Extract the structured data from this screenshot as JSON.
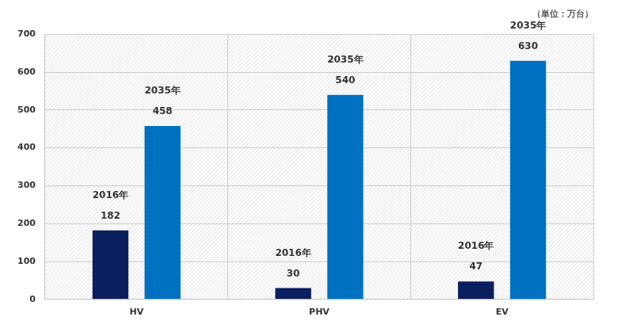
{
  "chart_data": {
    "type": "bar",
    "subtitle": "（単位：万台）",
    "categories": [
      "HV",
      "PHV",
      "EV"
    ],
    "series": [
      {
        "name": "2016年",
        "color": "#0b1f5e",
        "values": [
          182,
          30,
          47
        ]
      },
      {
        "name": "2035年",
        "color": "#0070c0",
        "values": [
          458,
          540,
          630
        ]
      }
    ],
    "ylim": [
      0,
      700
    ],
    "yticks": [
      0,
      100,
      200,
      300,
      400,
      500,
      600,
      700
    ],
    "grid": true,
    "data_labels": true
  }
}
